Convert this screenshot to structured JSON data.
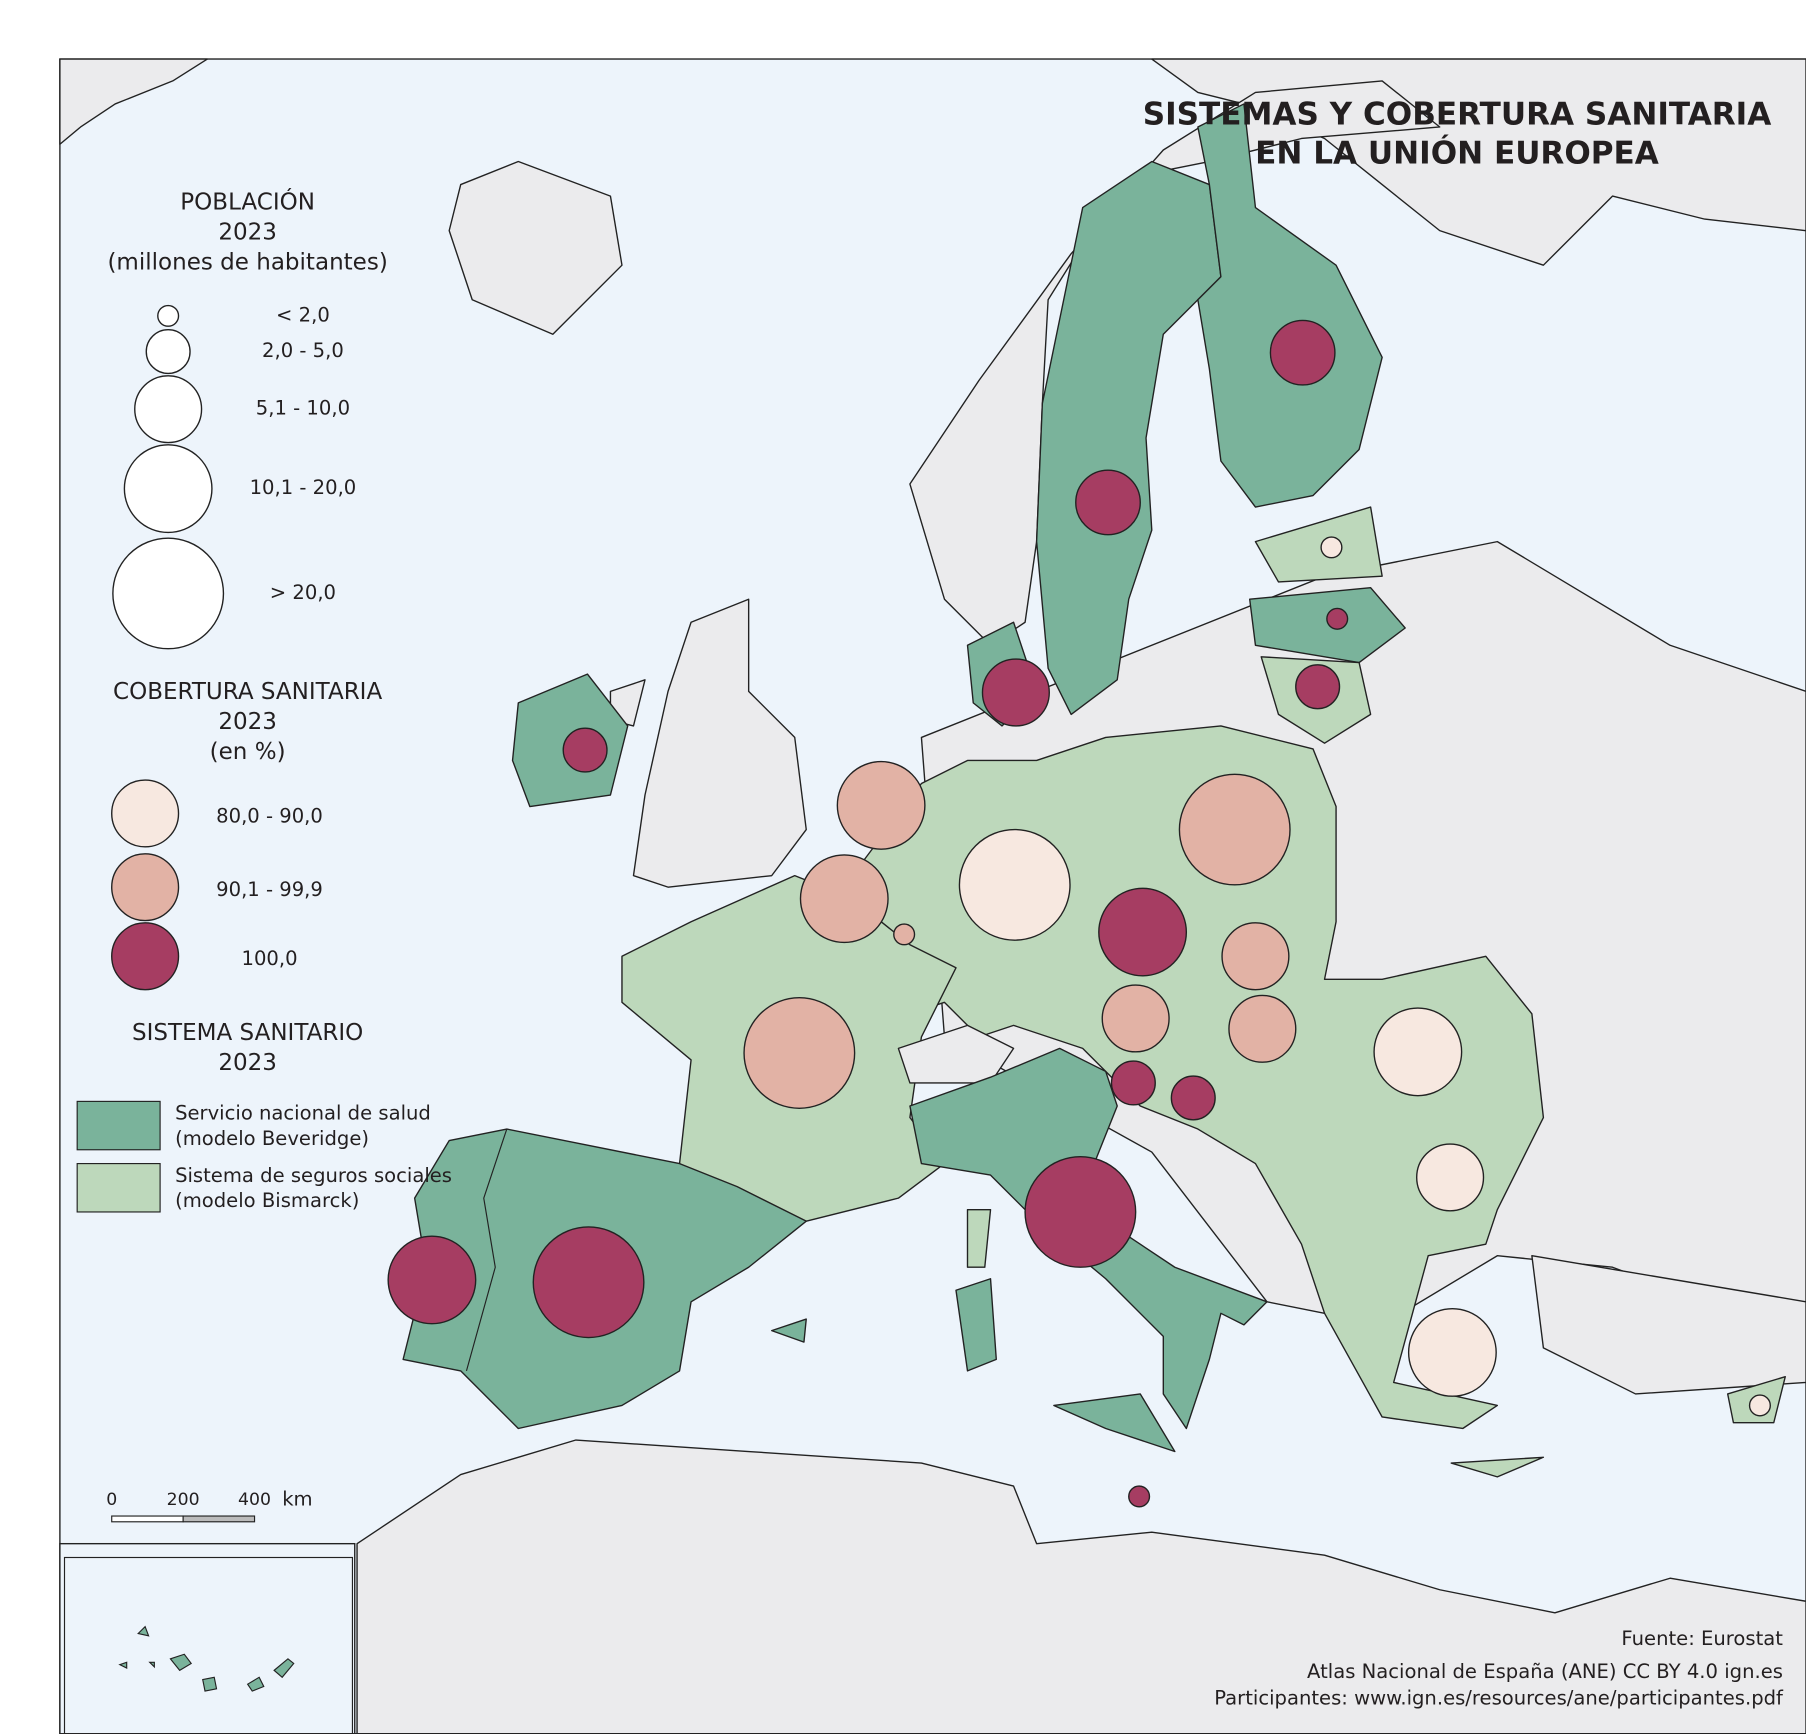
{
  "title": [
    "SISTEMAS Y COBERTURA SANITARIA",
    "EN LA UNIÓN EUROPEA"
  ],
  "legend": {
    "population": {
      "heading": [
        "POBLACIÓN",
        "2023",
        "(millones de habitantes)"
      ],
      "classes": [
        "< 2,0",
        "2,0 - 5,0",
        "5,1 - 10,0",
        "10,1 - 20,0",
        "> 20,0"
      ]
    },
    "coverage": {
      "heading": [
        "COBERTURA SANITARIA",
        "2023",
        "(en %)"
      ],
      "classes": [
        {
          "label": "80,0 - 90,0",
          "color": "#f7e8e0"
        },
        {
          "label": "90,1 - 99,9",
          "color": "#e2b2a5"
        },
        {
          "label": "100,0",
          "color": "#a63d62"
        }
      ]
    },
    "system": {
      "heading": [
        "SISTEMA SANITARIO",
        "2023"
      ],
      "classes": [
        {
          "label": [
            "Servicio nacional de salud",
            "(modelo Beveridge)"
          ],
          "color": "#7ab39b"
        },
        {
          "label": [
            "Sistema de seguros sociales",
            "(modelo Bismarck)"
          ],
          "color": "#bdd8bb"
        }
      ]
    }
  },
  "scale": {
    "ticks": [
      0,
      200,
      400
    ],
    "unit": "km"
  },
  "source": [
    "Fuente: Eurostat",
    "Atlas Nacional de España (ANE) CC BY 4.0 ign.es",
    "Participantes: www.ign.es/resources/ane/participantes.pdf"
  ]
}
